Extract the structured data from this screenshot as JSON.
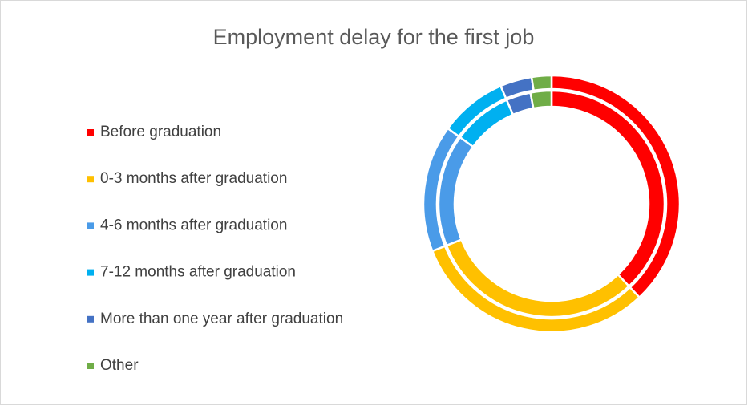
{
  "chart_data": {
    "type": "doughnut",
    "title": "Employment delay for the first job",
    "categories": [
      "Before graduation",
      "0-3 months after graduation",
      "4-6 months after graduation",
      "7-12 months after graduation",
      "More than one year after graduation",
      "Other"
    ],
    "colors": [
      "#ff0000",
      "#ffc000",
      "#4a9be8",
      "#00b0f0",
      "#4472c4",
      "#70ad47"
    ],
    "series": [
      {
        "values": [
          38,
          31,
          16,
          8.5,
          4,
          2.5
        ]
      },
      {
        "values": [
          38,
          31,
          16,
          8.5,
          3.5,
          3
        ]
      }
    ],
    "legend": "left"
  }
}
